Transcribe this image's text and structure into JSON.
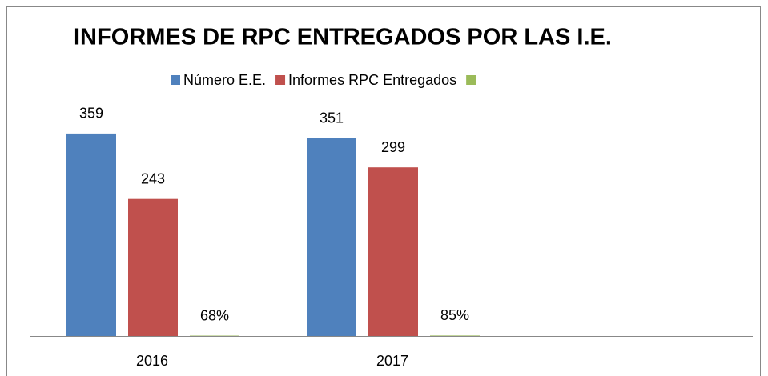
{
  "chart_data": {
    "type": "bar",
    "title": "INFORMES DE RPC ENTREGADOS POR LAS I.E.",
    "categories": [
      "2016",
      "2017"
    ],
    "series": [
      {
        "name": "Número E.E.",
        "color": "#4f81bd",
        "values": [
          359,
          351
        ]
      },
      {
        "name": "Informes RPC Entregados",
        "color": "#c0504d",
        "values": [
          243,
          299
        ]
      },
      {
        "color": "#9bbb59",
        "values": [
          0.68,
          0.85
        ],
        "value_labels": [
          "68%",
          "85%"
        ]
      }
    ],
    "ylim": [
      0,
      400
    ]
  }
}
